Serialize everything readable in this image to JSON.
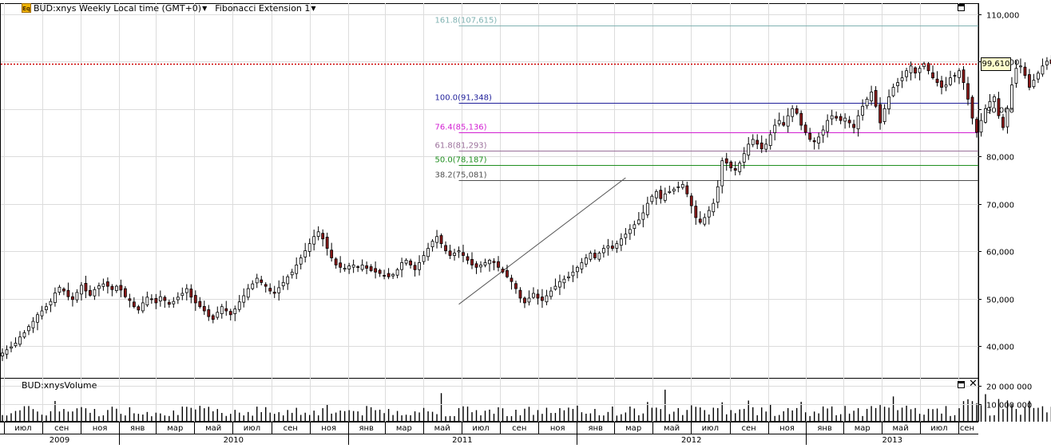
{
  "header": {
    "symbol": "BUD:xnys",
    "interval": "Weekly",
    "timezone": "Local time (GMT+0)",
    "study": "Fibonacci Extension 1",
    "icon": "eq-icon"
  },
  "volume_panel": {
    "label": "BUD:xnysVolume"
  },
  "last_price": "99,610",
  "colors": {
    "up": "#ffffff",
    "down": "#8b1a1a",
    "last_price_line": "#cc0000"
  },
  "chart_data": [
    {
      "type": "candlestick",
      "title": "BUD:xnys Weekly",
      "ylim": [
        35000,
        112000
      ],
      "y_ticks": [
        "110,000",
        "100,000",
        "90,000",
        "80,000",
        "70,000",
        "60,000",
        "50,000",
        "40,000"
      ],
      "y_tick_values": [
        110000,
        100000,
        90000,
        80000,
        70000,
        60000,
        50000,
        40000
      ],
      "x_month_labels": [
        "июл",
        "сен",
        "ноя",
        "янв",
        "мар",
        "май",
        "июл",
        "сен",
        "ноя",
        "янв",
        "мар",
        "май",
        "июл",
        "сен",
        "ноя",
        "янв",
        "мар",
        "май",
        "июл",
        "сен",
        "ноя",
        "янв",
        "мар",
        "май",
        "июл",
        "сен"
      ],
      "x_year_labels": [
        "2009",
        "2010",
        "2011",
        "2012",
        "2013"
      ],
      "x_range": [
        "2009-06-29",
        "2013-09-16"
      ],
      "grid": true,
      "fibonacci_extension": [
        {
          "label": "161.8(107,615)",
          "ratio": "161.8",
          "value": 107615,
          "color": "#7fb2b2"
        },
        {
          "label": "100.0(91,348)",
          "ratio": "100.0",
          "value": 91348,
          "color": "#1f1f9a"
        },
        {
          "label": "76.4(85,136)",
          "ratio": "76.4",
          "value": 85136,
          "color": "#d21fd2"
        },
        {
          "label": "61.8(81,293)",
          "ratio": "61.8",
          "value": 81293,
          "color": "#9a6f9a"
        },
        {
          "label": "50.0(78,187)",
          "ratio": "50.0",
          "value": 78187,
          "color": "#1f8f1f"
        },
        {
          "label": "38.2(75,081)",
          "ratio": "38.2",
          "value": 75081,
          "color": "#4f4f4f"
        }
      ],
      "trend_line": {
        "from": {
          "date": "2011-06-27",
          "price": 48800
        },
        "to": {
          "date": "2012-03-19",
          "price": 75500
        }
      },
      "last_price": 99610,
      "weekly_close": [
        38500,
        39200,
        39800,
        40600,
        41900,
        42800,
        44100,
        45200,
        46600,
        47400,
        48300,
        49400,
        51200,
        52400,
        51600,
        50400,
        49800,
        51300,
        52800,
        51600,
        50700,
        51900,
        52700,
        53100,
        52600,
        51900,
        52600,
        51800,
        50400,
        49600,
        48300,
        47600,
        49100,
        50300,
        49800,
        49100,
        50400,
        49600,
        48800,
        49400,
        50300,
        51100,
        52100,
        50300,
        49100,
        48300,
        47400,
        46200,
        45600,
        47100,
        48300,
        47400,
        46600,
        47800,
        49300,
        50600,
        52100,
        53100,
        54300,
        53400,
        52600,
        51600,
        51100,
        52300,
        53400,
        54600,
        55600,
        57100,
        58600,
        60100,
        61600,
        63100,
        64100,
        62600,
        60600,
        58600,
        57100,
        56600,
        56400,
        56900,
        57100,
        56600,
        57100,
        56400,
        55900,
        55600,
        55300,
        54900,
        54600,
        55100,
        56100,
        57600,
        58100,
        57100,
        56100,
        57600,
        59100,
        60600,
        62100,
        63100,
        61600,
        60100,
        59100,
        59600,
        60100,
        59100,
        58100,
        57100,
        56600,
        57100,
        57600,
        58100,
        57600,
        56600,
        55600,
        54600,
        53600,
        52100,
        50100,
        49100,
        50100,
        51100,
        50100,
        49600,
        50600,
        51600,
        52600,
        53600,
        54100,
        54600,
        55600,
        56600,
        57600,
        58600,
        59600,
        58600,
        59600,
        60600,
        61100,
        60600,
        61600,
        62600,
        63600,
        64600,
        65600,
        66600,
        68100,
        70100,
        71600,
        72600,
        71100,
        72100,
        72600,
        73100,
        73600,
        74100,
        72100,
        69600,
        67100,
        66100,
        67100,
        68600,
        70100,
        73600,
        79100,
        78600,
        77600,
        77100,
        78600,
        80600,
        82600,
        83600,
        82600,
        81600,
        82600,
        84600,
        86600,
        87600,
        86600,
        88600,
        90100,
        89100,
        86600,
        85100,
        83600,
        83100,
        84100,
        85600,
        87600,
        88600,
        88100,
        87600,
        88100,
        87100,
        86100,
        88600,
        90600,
        92100,
        93600,
        90600,
        87100,
        90100,
        92600,
        94600,
        95600,
        96600,
        98100,
        99100,
        97600,
        98600,
        99600,
        98100,
        96600,
        95600,
        94600,
        95100,
        96600,
        97100,
        98100,
        95600,
        92100,
        88100,
        85100,
        87600,
        90100,
        91600,
        92600,
        88600,
        86100,
        90100,
        95100,
        98600,
        99100,
        97100,
        94600,
        96100,
        97600,
        99100,
        100100,
        99610
      ],
      "volume_ticks": [
        "20 000 000",
        "10 000 000"
      ]
    }
  ]
}
